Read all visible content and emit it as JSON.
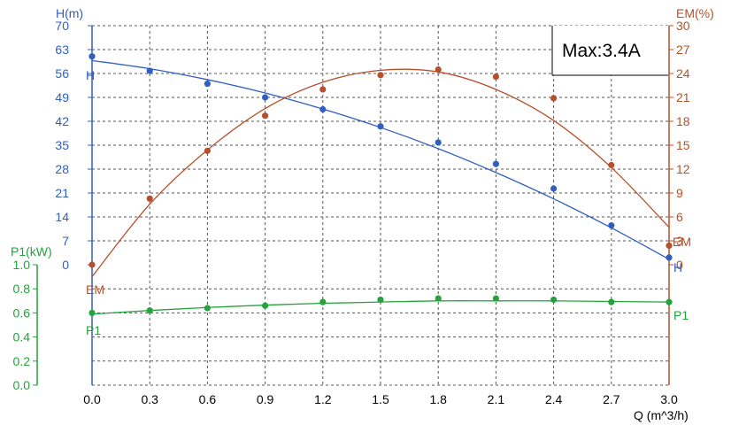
{
  "chart_data": {
    "type": "line",
    "annotation": "Max:3.4A",
    "colors": {
      "H": "#2f5fc0",
      "EM": "#b5502a",
      "P1": "#24a33c"
    },
    "x": {
      "label": "Q (m^3/h)",
      "ticks": [
        "0.0",
        "0.3",
        "0.6",
        "0.9",
        "1.2",
        "1.5",
        "1.8",
        "2.1",
        "2.4",
        "2.7",
        "3.0"
      ],
      "range": [
        0,
        3.0
      ]
    },
    "axes": {
      "H": {
        "label": "H(m)",
        "range": [
          0,
          70
        ],
        "ticks": [
          "0",
          "7",
          "14",
          "21",
          "28",
          "35",
          "42",
          "49",
          "56",
          "63",
          "70"
        ]
      },
      "EM": {
        "label": "EM(%)",
        "range": [
          0,
          30
        ],
        "ticks": [
          "0",
          "3",
          "6",
          "9",
          "12",
          "15",
          "18",
          "21",
          "24",
          "27",
          "30"
        ]
      },
      "P1": {
        "label": "P1(kW)",
        "range": [
          0,
          1.0
        ],
        "ticks": [
          "0.0",
          "0.2",
          "0.4",
          "0.6",
          "0.8",
          "1.0"
        ]
      }
    },
    "series": [
      {
        "name": "H",
        "axis": "H",
        "end_label": "H",
        "points": [
          [
            0.0,
            61.0
          ],
          [
            0.3,
            56.8
          ],
          [
            0.6,
            53.0
          ],
          [
            0.9,
            49.0
          ],
          [
            1.2,
            45.5
          ],
          [
            1.5,
            40.5
          ],
          [
            1.8,
            35.8
          ],
          [
            2.1,
            29.5
          ],
          [
            2.4,
            22.3
          ],
          [
            2.7,
            11.5
          ],
          [
            3.0,
            2.1
          ]
        ],
        "curve": [
          [
            0.0,
            59.8
          ],
          [
            0.3,
            57.4
          ],
          [
            0.6,
            54.2
          ],
          [
            0.9,
            50.3
          ],
          [
            1.2,
            45.6
          ],
          [
            1.5,
            40.2
          ],
          [
            1.8,
            34.0
          ],
          [
            2.1,
            27.0
          ],
          [
            2.4,
            19.3
          ],
          [
            2.7,
            10.8
          ],
          [
            3.0,
            1.6
          ]
        ]
      },
      {
        "name": "EM",
        "axis": "EM",
        "end_label": "EM",
        "points": [
          [
            0.0,
            0.0
          ],
          [
            0.3,
            8.3
          ],
          [
            0.6,
            14.3
          ],
          [
            0.9,
            18.7
          ],
          [
            1.2,
            22.0
          ],
          [
            1.5,
            23.8
          ],
          [
            1.8,
            24.5
          ],
          [
            2.1,
            23.6
          ],
          [
            2.4,
            20.9
          ],
          [
            2.7,
            12.5
          ],
          [
            3.0,
            2.4
          ]
        ],
        "curve": [
          [
            0.0,
            -1.5
          ],
          [
            0.3,
            7.6
          ],
          [
            0.6,
            14.4
          ],
          [
            0.9,
            19.6
          ],
          [
            1.2,
            22.9
          ],
          [
            1.5,
            24.4
          ],
          [
            1.8,
            24.2
          ],
          [
            2.1,
            22.0
          ],
          [
            2.4,
            18.1
          ],
          [
            2.7,
            12.2
          ],
          [
            3.0,
            4.7
          ]
        ]
      },
      {
        "name": "P1",
        "axis": "P1",
        "end_label": "P1",
        "points": [
          [
            0.0,
            0.6
          ],
          [
            0.3,
            0.62
          ],
          [
            0.6,
            0.64
          ],
          [
            0.9,
            0.66
          ],
          [
            1.2,
            0.69
          ],
          [
            1.5,
            0.71
          ],
          [
            1.8,
            0.72
          ],
          [
            2.1,
            0.72
          ],
          [
            2.4,
            0.71
          ],
          [
            2.7,
            0.69
          ],
          [
            3.0,
            0.69
          ]
        ],
        "curve": [
          [
            0.0,
            0.59
          ],
          [
            0.3,
            0.62
          ],
          [
            0.6,
            0.645
          ],
          [
            0.9,
            0.665
          ],
          [
            1.2,
            0.68
          ],
          [
            1.5,
            0.69
          ],
          [
            1.8,
            0.7
          ],
          [
            2.1,
            0.7
          ],
          [
            2.4,
            0.7
          ],
          [
            2.7,
            0.695
          ],
          [
            3.0,
            0.69
          ]
        ]
      }
    ],
    "grid": true
  }
}
